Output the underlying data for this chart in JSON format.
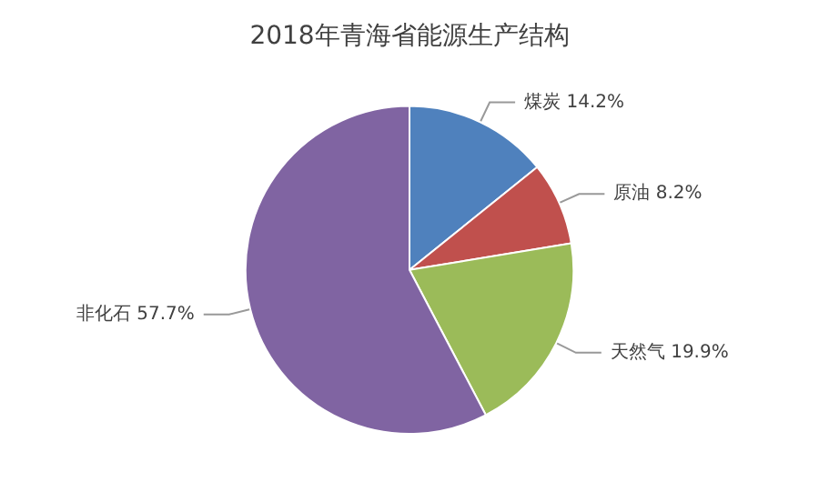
{
  "chart_data": {
    "type": "pie",
    "title": "2018年青海省能源生产结构",
    "categories": [
      "煤炭",
      "原油",
      "天然气",
      "非化石"
    ],
    "values": [
      14.2,
      8.2,
      19.9,
      57.7
    ],
    "colors": [
      "#4f81bd",
      "#c0504d",
      "#9bbb59",
      "#8064a2"
    ],
    "value_labels": [
      "14.2%",
      "8.2%",
      "19.9%",
      "57.7%"
    ],
    "legend": false
  }
}
